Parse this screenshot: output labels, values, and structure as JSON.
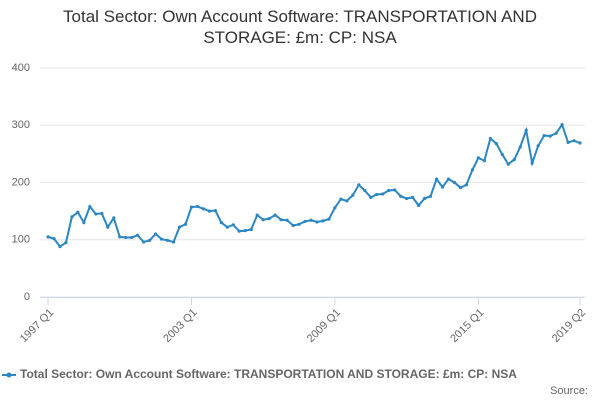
{
  "chart_data": {
    "type": "line",
    "title": "Total Sector: Own Account Software: TRANSPORTATION AND STORAGE: £m: CP: NSA",
    "categories": [
      "1997 Q1",
      null,
      null,
      null,
      null,
      null,
      null,
      null,
      null,
      null,
      null,
      null,
      null,
      null,
      null,
      null,
      null,
      null,
      null,
      null,
      null,
      null,
      null,
      null,
      "2003 Q1",
      null,
      null,
      null,
      null,
      null,
      null,
      null,
      null,
      null,
      null,
      null,
      null,
      null,
      null,
      null,
      null,
      null,
      null,
      null,
      null,
      null,
      null,
      null,
      "2009 Q1",
      null,
      null,
      null,
      null,
      null,
      null,
      null,
      null,
      null,
      null,
      null,
      null,
      null,
      null,
      null,
      null,
      null,
      null,
      null,
      null,
      null,
      null,
      null,
      "2015 Q1",
      null,
      null,
      null,
      null,
      null,
      null,
      null,
      null,
      null,
      null,
      null,
      null,
      null,
      null,
      null,
      null,
      "2019 Q2"
    ],
    "series": [
      {
        "name": "Total Sector: Own Account Software: TRANSPORTATION AND STORAGE: £m: CP: NSA",
        "color": "#2a87c3",
        "values": [
          105,
          102,
          88,
          95,
          140,
          148,
          130,
          158,
          145,
          146,
          122,
          138,
          105,
          104,
          104,
          108,
          96,
          99,
          110,
          101,
          99,
          96,
          122,
          127,
          157,
          158,
          154,
          150,
          151,
          130,
          122,
          126,
          115,
          116,
          118,
          143,
          135,
          137,
          143,
          135,
          134,
          125,
          127,
          132,
          134,
          131,
          133,
          136,
          156,
          171,
          168,
          178,
          196,
          186,
          174,
          179,
          180,
          186,
          187,
          176,
          172,
          174,
          160,
          172,
          176,
          206,
          192,
          206,
          200,
          191,
          196,
          222,
          243,
          238,
          277,
          268,
          249,
          232,
          240,
          262,
          291,
          234,
          264,
          282,
          281,
          286,
          301,
          270,
          273,
          269
        ]
      }
    ],
    "ylim": [
      0,
      400
    ],
    "yticks": [
      0,
      100,
      200,
      300,
      400
    ],
    "grid": true,
    "source": "Source:"
  }
}
